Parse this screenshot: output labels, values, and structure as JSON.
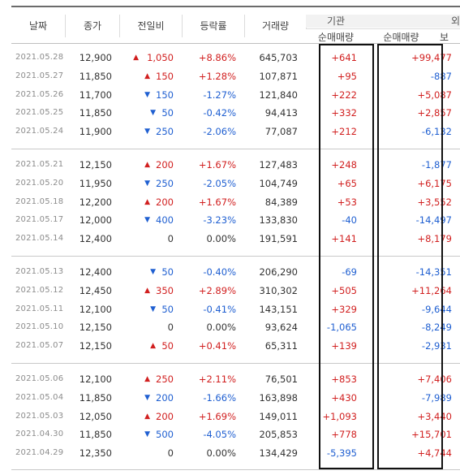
{
  "header": {
    "date": "날짜",
    "close": "종가",
    "diff": "전일비",
    "rate": "등락률",
    "volume": "거래량",
    "inst_group": "기관",
    "inst_sub": "순매매량",
    "frgn_group": "외",
    "frgn_sub": "순매매량",
    "frgn_sub2": "보"
  },
  "colors": {
    "up": "#d11f1f",
    "down": "#1f5fd1",
    "highlight": "#111111"
  },
  "rows": [
    {
      "date": "2021.05.28",
      "close": "12,900",
      "dir": "up",
      "diff": "1,050",
      "rate": "+8.86%",
      "volume": "645,703",
      "inst": "+641",
      "frgn": "+99,477"
    },
    {
      "date": "2021.05.27",
      "close": "11,850",
      "dir": "up",
      "diff": "150",
      "rate": "+1.28%",
      "volume": "107,871",
      "inst": "+95",
      "frgn": "-887"
    },
    {
      "date": "2021.05.26",
      "close": "11,700",
      "dir": "down",
      "diff": "150",
      "rate": "-1.27%",
      "volume": "121,840",
      "inst": "+222",
      "frgn": "+5,087"
    },
    {
      "date": "2021.05.25",
      "close": "11,850",
      "dir": "down",
      "diff": "50",
      "rate": "-0.42%",
      "volume": "94,413",
      "inst": "+332",
      "frgn": "+2,857"
    },
    {
      "date": "2021.05.24",
      "close": "11,900",
      "dir": "down",
      "diff": "250",
      "rate": "-2.06%",
      "volume": "77,087",
      "inst": "+212",
      "frgn": "-6,132"
    },
    {
      "date": "2021.05.21",
      "close": "12,150",
      "dir": "up",
      "diff": "200",
      "rate": "+1.67%",
      "volume": "127,483",
      "inst": "+248",
      "frgn": "-1,877"
    },
    {
      "date": "2021.05.20",
      "close": "11,950",
      "dir": "down",
      "diff": "250",
      "rate": "-2.05%",
      "volume": "104,749",
      "inst": "+65",
      "frgn": "+6,175"
    },
    {
      "date": "2021.05.18",
      "close": "12,200",
      "dir": "up",
      "diff": "200",
      "rate": "+1.67%",
      "volume": "84,389",
      "inst": "+53",
      "frgn": "+3,552"
    },
    {
      "date": "2021.05.17",
      "close": "12,000",
      "dir": "down",
      "diff": "400",
      "rate": "-3.23%",
      "volume": "133,830",
      "inst": "-40",
      "frgn": "-14,497"
    },
    {
      "date": "2021.05.14",
      "close": "12,400",
      "dir": "none",
      "diff": "0",
      "rate": "0.00%",
      "volume": "191,591",
      "inst": "+141",
      "frgn": "+8,179"
    },
    {
      "date": "2021.05.13",
      "close": "12,400",
      "dir": "down",
      "diff": "50",
      "rate": "-0.40%",
      "volume": "206,290",
      "inst": "-69",
      "frgn": "-14,351"
    },
    {
      "date": "2021.05.12",
      "close": "12,450",
      "dir": "up",
      "diff": "350",
      "rate": "+2.89%",
      "volume": "310,302",
      "inst": "+505",
      "frgn": "+11,264"
    },
    {
      "date": "2021.05.11",
      "close": "12,100",
      "dir": "down",
      "diff": "50",
      "rate": "-0.41%",
      "volume": "143,151",
      "inst": "+329",
      "frgn": "-9,644"
    },
    {
      "date": "2021.05.10",
      "close": "12,150",
      "dir": "none",
      "diff": "0",
      "rate": "0.00%",
      "volume": "93,624",
      "inst": "-1,065",
      "frgn": "-8,249"
    },
    {
      "date": "2021.05.07",
      "close": "12,150",
      "dir": "up",
      "diff": "50",
      "rate": "+0.41%",
      "volume": "65,311",
      "inst": "+139",
      "frgn": "-2,931"
    },
    {
      "date": "2021.05.06",
      "close": "12,100",
      "dir": "up",
      "diff": "250",
      "rate": "+2.11%",
      "volume": "76,501",
      "inst": "+853",
      "frgn": "+7,406"
    },
    {
      "date": "2021.05.04",
      "close": "11,850",
      "dir": "down",
      "diff": "200",
      "rate": "-1.66%",
      "volume": "163,898",
      "inst": "+430",
      "frgn": "-7,989"
    },
    {
      "date": "2021.05.03",
      "close": "12,050",
      "dir": "up",
      "diff": "200",
      "rate": "+1.69%",
      "volume": "149,011",
      "inst": "+1,093",
      "frgn": "+3,440"
    },
    {
      "date": "2021.04.30",
      "close": "11,850",
      "dir": "down",
      "diff": "500",
      "rate": "-4.05%",
      "volume": "205,853",
      "inst": "+778",
      "frgn": "+15,701"
    },
    {
      "date": "2021.04.29",
      "close": "12,350",
      "dir": "none",
      "diff": "0",
      "rate": "0.00%",
      "volume": "134,429",
      "inst": "-5,395",
      "frgn": "+4,744"
    }
  ]
}
